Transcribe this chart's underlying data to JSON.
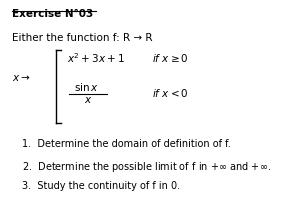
{
  "title": "Exercise N°03",
  "background_color": "#ffffff",
  "text_color": "#000000",
  "fig_width": 2.95,
  "fig_height": 2.0,
  "dpi": 100,
  "q1": "1.  Determine the domain of definition of f.",
  "q2": "2.  Determine the possible limit of f in $+\\infty$ and $+ \\infty$.",
  "q3": "3.  Study the continuity of f in 0."
}
